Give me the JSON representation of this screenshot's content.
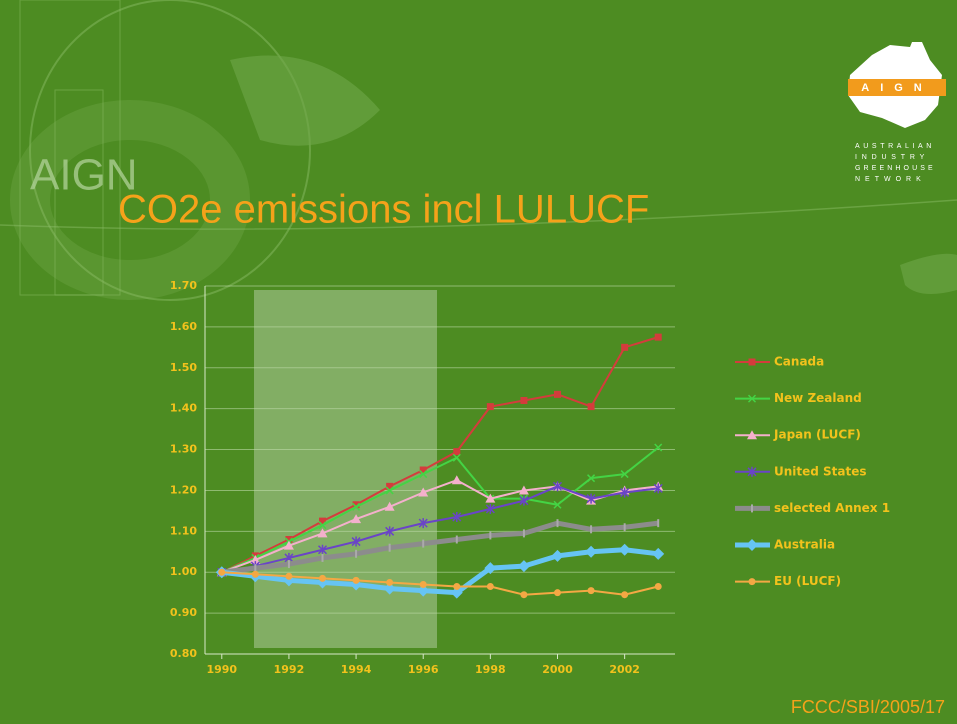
{
  "slide": {
    "watermark": "AIGN",
    "logo": {
      "acronym": "AIGN",
      "lines": [
        "AUSTRALIAN",
        "INDUSTRY",
        "GREENHOUSE",
        "NETWORK"
      ]
    },
    "footer": "FCCC/SBI/2005/17"
  },
  "chart_data": {
    "type": "line",
    "title": "CO2e emissions incl LULUCF",
    "x": [
      1990,
      1991,
      1992,
      1993,
      1994,
      1995,
      1996,
      1997,
      1998,
      1999,
      2000,
      2001,
      2002,
      2003
    ],
    "xlim": [
      1989.5,
      2003.5
    ],
    "xticks": [
      1990,
      1992,
      1994,
      1996,
      1998,
      2000,
      2002
    ],
    "ylim": [
      0.8,
      1.7
    ],
    "yticks": [
      {
        "value": 0.8,
        "label": "0.80"
      },
      {
        "value": 0.9,
        "label": "0.90"
      },
      {
        "value": 1.0,
        "label": "1.00"
      },
      {
        "value": 1.1,
        "label": "1.10"
      },
      {
        "value": 1.2,
        "label": "1.20"
      },
      {
        "value": 1.3,
        "label": "1.30"
      },
      {
        "value": 1.4,
        "label": "1.40"
      },
      {
        "value": 1.5,
        "label": "1.50"
      },
      {
        "value": 1.6,
        "label": "1.60"
      },
      {
        "value": 1.7,
        "label": "1.70"
      }
    ],
    "grid": true,
    "legend": "right",
    "series": [
      {
        "name": "Canada",
        "color": "#d43c3c",
        "marker": "square",
        "width": 2,
        "values": [
          1.0,
          1.04,
          1.08,
          1.125,
          1.165,
          1.21,
          1.25,
          1.295,
          1.405,
          1.42,
          1.435,
          1.405,
          1.55,
          1.575
        ]
      },
      {
        "name": "New Zealand",
        "color": "#44d444",
        "marker": "x",
        "width": 2,
        "values": [
          1.0,
          1.035,
          1.075,
          1.115,
          1.16,
          1.2,
          1.24,
          1.28,
          1.18,
          1.18,
          1.165,
          1.23,
          1.24,
          1.305
        ]
      },
      {
        "name": "Japan (LUCF)",
        "color": "#f4b0cc",
        "marker": "triangle",
        "width": 2,
        "values": [
          1.0,
          1.03,
          1.065,
          1.095,
          1.13,
          1.16,
          1.195,
          1.225,
          1.18,
          1.2,
          1.21,
          1.175,
          1.2,
          1.21
        ]
      },
      {
        "name": "United States",
        "color": "#6a44c8",
        "marker": "star",
        "width": 2,
        "values": [
          1.0,
          1.015,
          1.035,
          1.055,
          1.075,
          1.1,
          1.12,
          1.135,
          1.155,
          1.175,
          1.21,
          1.18,
          1.195,
          1.205
        ]
      },
      {
        "name": "selected Annex 1",
        "color": "#8c8c8c",
        "marker": "dash",
        "width": 5,
        "values": [
          1.0,
          1.01,
          1.02,
          1.035,
          1.045,
          1.06,
          1.07,
          1.08,
          1.09,
          1.095,
          1.12,
          1.105,
          1.11,
          1.12
        ]
      },
      {
        "name": "Australia",
        "color": "#66c4f4",
        "marker": "diamond",
        "width": 5,
        "values": [
          1.0,
          0.99,
          0.98,
          0.975,
          0.97,
          0.96,
          0.955,
          0.95,
          1.01,
          1.015,
          1.04,
          1.05,
          1.055,
          1.045
        ]
      },
      {
        "name": "EU (LUCF)",
        "color": "#f4a844",
        "marker": "circle",
        "width": 2,
        "values": [
          1.0,
          0.995,
          0.99,
          0.985,
          0.98,
          0.975,
          0.97,
          0.965,
          0.965,
          0.945,
          0.95,
          0.955,
          0.945,
          0.965
        ]
      }
    ]
  }
}
